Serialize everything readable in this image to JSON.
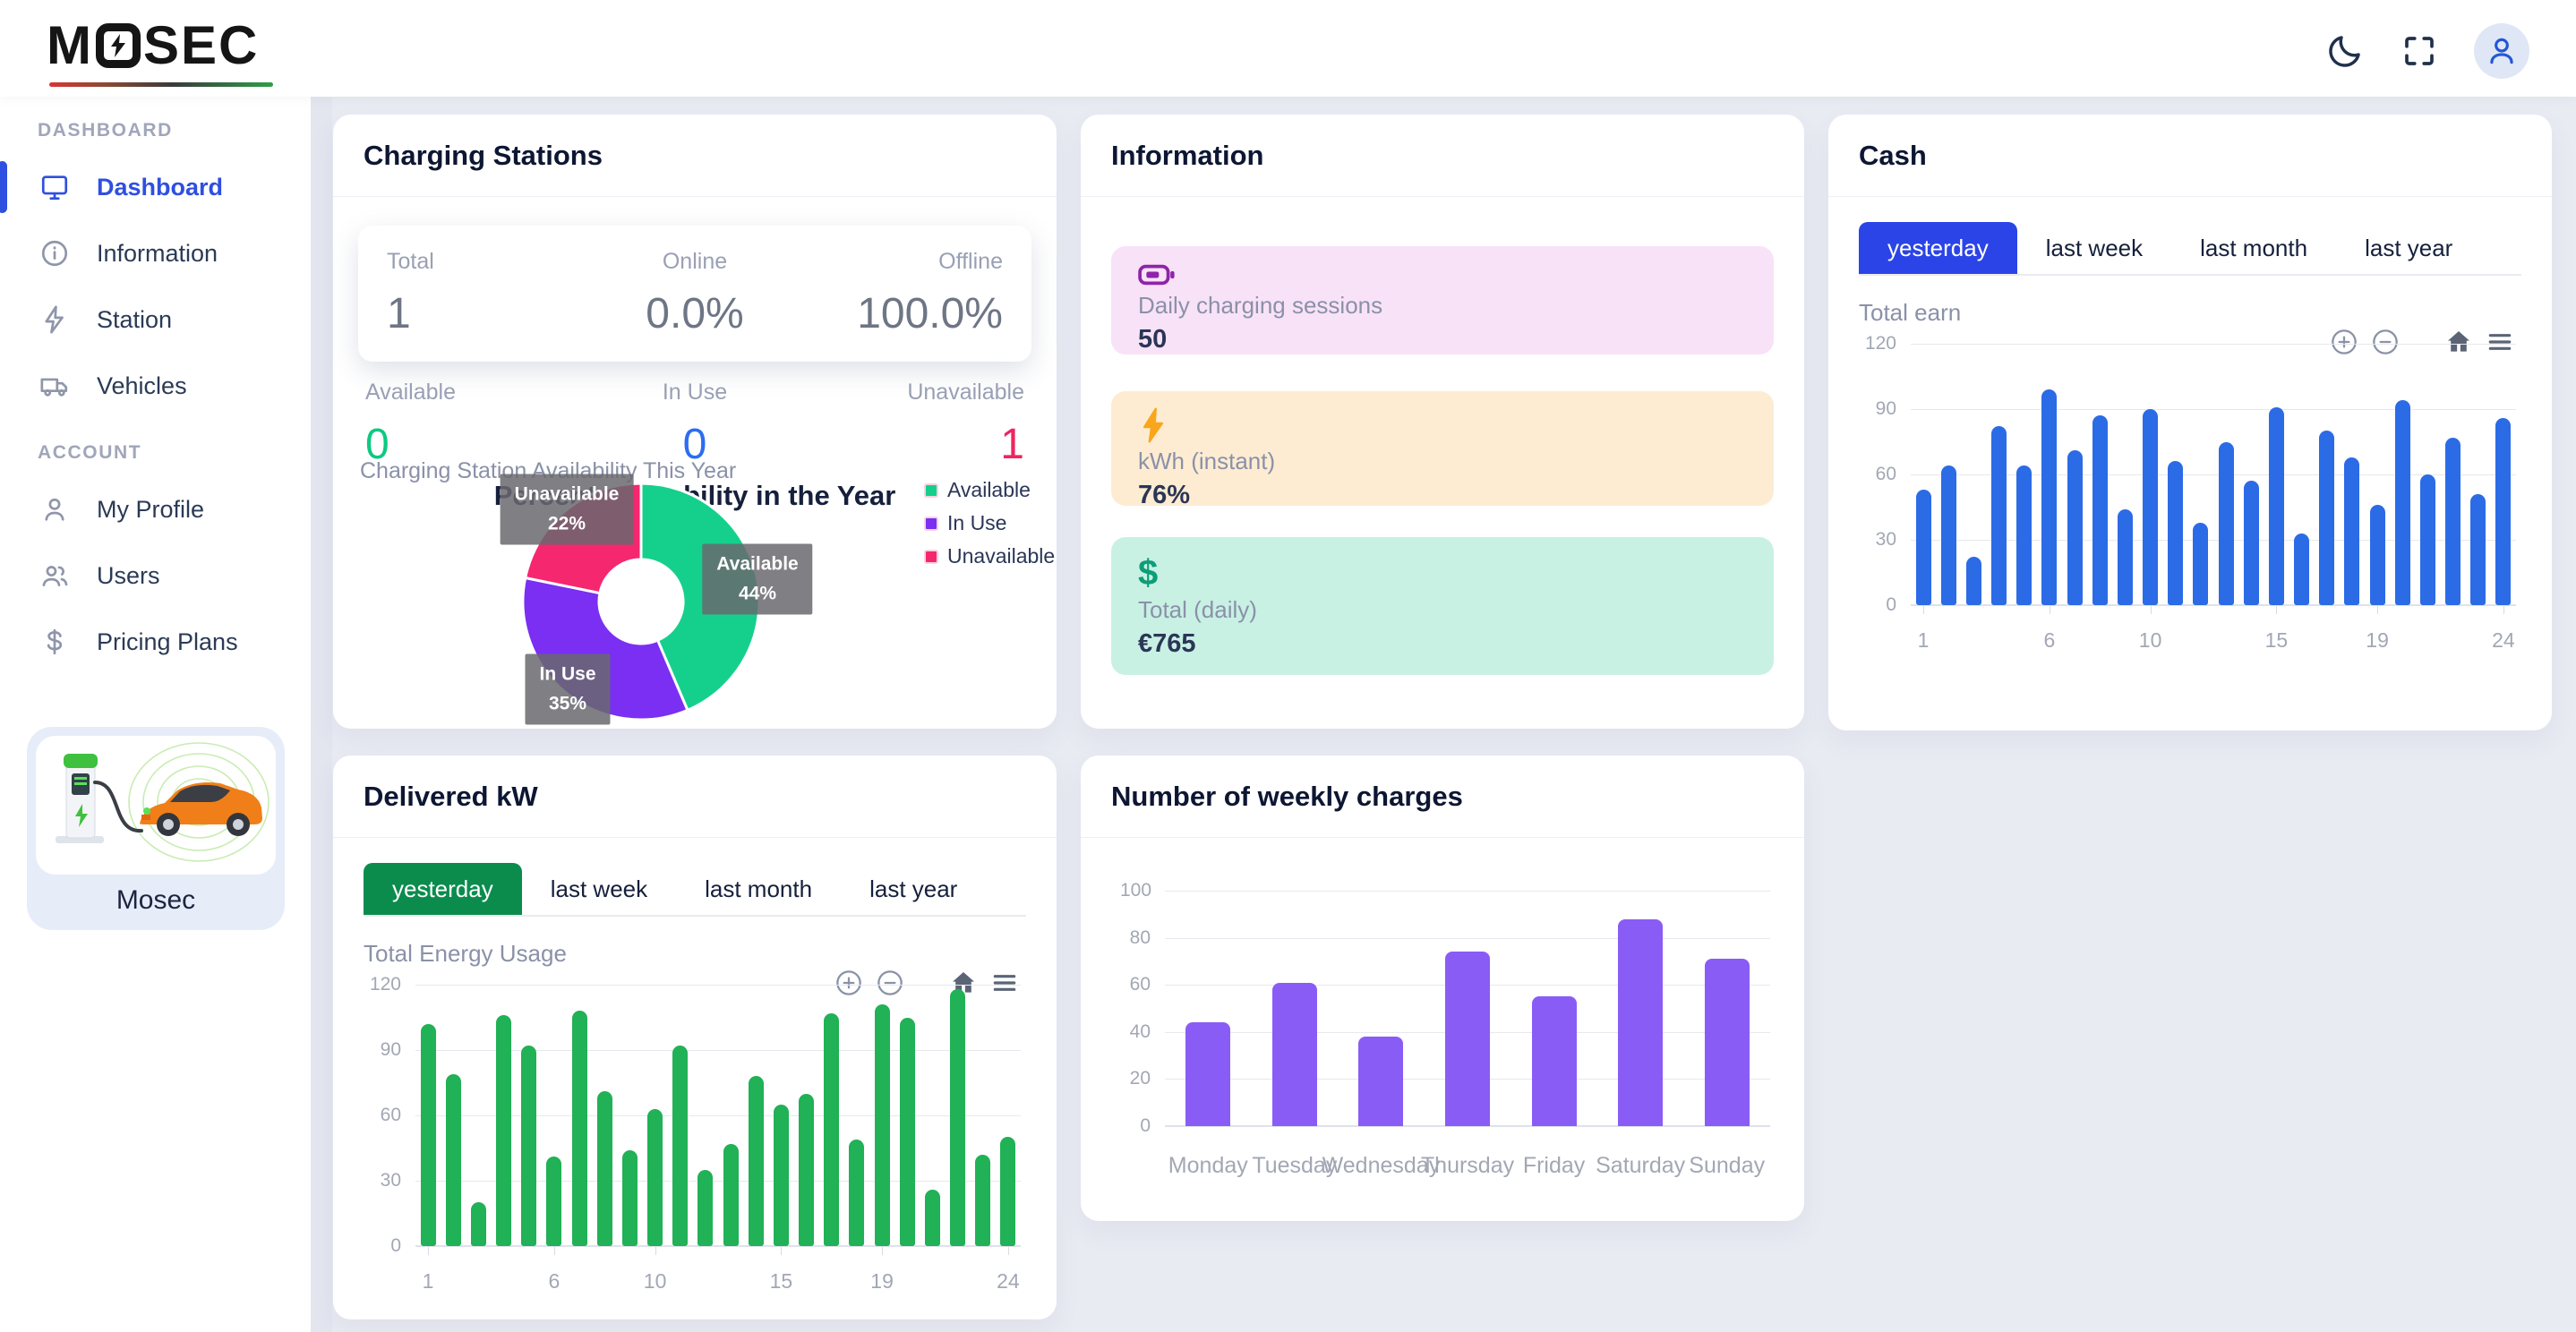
{
  "topbar": {
    "brand": "MOSEC",
    "brand_prefix": "M",
    "brand_suffix": "SEC"
  },
  "sidebar": {
    "sections": [
      {
        "label": "DASHBOARD",
        "items": [
          {
            "label": "Dashboard",
            "icon": "monitor",
            "active": true
          },
          {
            "label": "Information",
            "icon": "info",
            "active": false
          },
          {
            "label": "Station",
            "icon": "bolt",
            "active": false
          },
          {
            "label": "Vehicles",
            "icon": "truck",
            "active": false
          }
        ]
      },
      {
        "label": "ACCOUNT",
        "items": [
          {
            "label": "My Profile",
            "icon": "user",
            "active": false
          },
          {
            "label": "Users",
            "icon": "users",
            "active": false
          },
          {
            "label": "Pricing Plans",
            "icon": "dollar",
            "active": false
          }
        ]
      }
    ],
    "footer_label": "Mosec"
  },
  "cards": {
    "charging_stations": {
      "title": "Charging Stations",
      "summary": [
        {
          "label": "Total",
          "value": "1",
          "color": "#6e7585"
        },
        {
          "label": "Online",
          "value": "0.0%",
          "color": "#6e7585"
        },
        {
          "label": "Offline",
          "value": "100.0%",
          "color": "#6e7585"
        }
      ],
      "availability": [
        {
          "label": "Available",
          "value": "0",
          "color": "#0dc981"
        },
        {
          "label": "In Use",
          "value": "0",
          "color": "#2d6cf2"
        },
        {
          "label": "Unavailable",
          "value": "1",
          "color": "#ef2460"
        }
      ],
      "chart_label": "Charging Station Availability This Year",
      "chart_title": "Percent Availability in the Year"
    },
    "information": {
      "title": "Information",
      "boxes": [
        {
          "icon": "battery",
          "label": "Daily charging sessions",
          "value": "50",
          "bg": "#f8e2f7",
          "icon_color": "#8e24aa"
        },
        {
          "icon": "boltfill",
          "label": "kWh (instant)",
          "value": "76%",
          "bg": "#fdecd2",
          "icon_color": "#f9a61a"
        },
        {
          "icon": "dollar",
          "label": "Total (daily)",
          "value": "€765",
          "bg": "#c8f1e4",
          "icon_color": "#0d9e77"
        }
      ]
    },
    "cash": {
      "title": "Cash",
      "tabs": [
        "yesterday",
        "last week",
        "last month",
        "last year"
      ],
      "active_tab": "yesterday",
      "active_color": "#2b44e7",
      "chart_label": "Total earn"
    },
    "delivered": {
      "title": "Delivered kW",
      "tabs": [
        "yesterday",
        "last week",
        "last month",
        "last year"
      ],
      "active_tab": "yesterday",
      "active_color": "#0b8c4d",
      "chart_label": "Total Energy Usage"
    },
    "weekly": {
      "title": "Number of weekly charges"
    }
  },
  "chart_data": [
    {
      "name": "availability_pie",
      "type": "pie",
      "title": "Percent Availability in the Year",
      "labels": [
        "Available",
        "In Use",
        "Unavailable"
      ],
      "values": [
        44,
        35,
        22
      ],
      "display_pcts": [
        "44%",
        "35%",
        "22%"
      ],
      "colors": [
        "#15d08d",
        "#7a2ff2",
        "#f5276e"
      ],
      "legend_position": "right"
    },
    {
      "name": "cash_hourly",
      "type": "bar",
      "title": "Total earn",
      "x": [
        1,
        2,
        3,
        4,
        5,
        6,
        7,
        8,
        9,
        10,
        11,
        12,
        13,
        14,
        15,
        16,
        17,
        18,
        19,
        20,
        21,
        22,
        23,
        24
      ],
      "values": [
        53,
        64,
        22,
        82,
        64,
        99,
        71,
        87,
        44,
        90,
        66,
        38,
        75,
        57,
        91,
        33,
        80,
        68,
        46,
        94,
        60,
        77,
        51,
        86
      ],
      "color": "#2c6be6",
      "ylim": [
        0,
        120
      ],
      "yticks": [
        0,
        30,
        60,
        90,
        120
      ],
      "xtick_labels": [
        "1",
        "6",
        "10",
        "15",
        "19",
        "24"
      ],
      "grid": true
    },
    {
      "name": "delivered_hourly",
      "type": "bar",
      "title": "Total Energy Usage",
      "x": [
        1,
        2,
        3,
        4,
        5,
        6,
        7,
        8,
        9,
        10,
        11,
        12,
        13,
        14,
        15,
        16,
        17,
        18,
        19,
        20,
        21,
        22,
        23,
        24
      ],
      "values": [
        102,
        79,
        20,
        106,
        92,
        41,
        108,
        71,
        44,
        63,
        92,
        35,
        47,
        78,
        65,
        70,
        107,
        49,
        111,
        105,
        26,
        118,
        42,
        50
      ],
      "color": "#21b156",
      "ylim": [
        0,
        120
      ],
      "yticks": [
        0,
        30,
        60,
        90,
        120
      ],
      "xtick_labels": [
        "1",
        "6",
        "10",
        "15",
        "19",
        "24"
      ],
      "grid": true
    },
    {
      "name": "weekly_charges",
      "type": "bar",
      "title": "Number of weekly charges",
      "categories": [
        "Monday",
        "Tuesday",
        "Wednesday",
        "Thursday",
        "Friday",
        "Saturday",
        "Sunday"
      ],
      "values": [
        44,
        61,
        38,
        74,
        55,
        88,
        71
      ],
      "color": "#8a5cf6",
      "ylim": [
        0,
        100
      ],
      "yticks": [
        0,
        20,
        40,
        60,
        80,
        100
      ],
      "grid": true
    }
  ]
}
